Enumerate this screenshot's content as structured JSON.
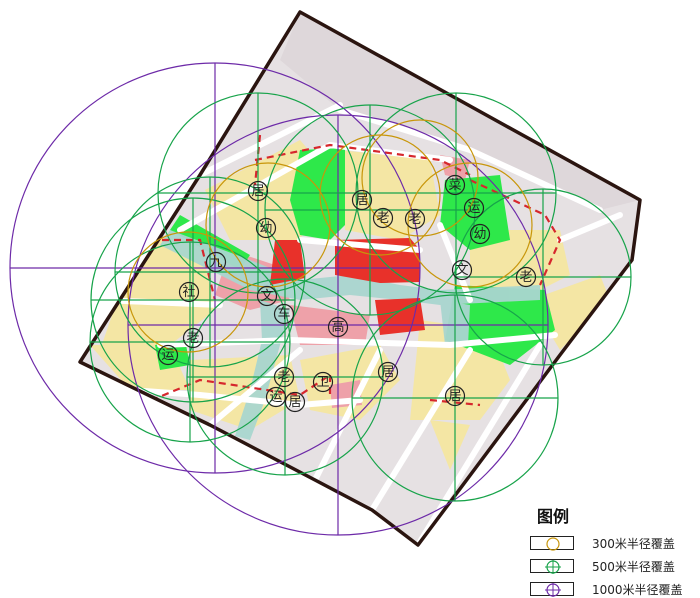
{
  "legend": {
    "title": "图例",
    "items": [
      {
        "label": "300米半径覆盖",
        "color": "#c8960a",
        "kind": "circle"
      },
      {
        "label": "500米半径覆盖",
        "color": "#17a34a",
        "kind": "circle-cross"
      },
      {
        "label": "1000米半径覆盖",
        "color": "#6d2aa8",
        "kind": "circle-cross"
      }
    ]
  },
  "colors": {
    "boundary": "#2b1510",
    "road": "#ffffff",
    "base": "#e6e1e3",
    "residential": "#f4e6a4",
    "green": "#2ee84a",
    "commercial": "#e8312a",
    "pink": "#eea1a9",
    "water": "#a9d6cf",
    "coverage_300": "#c8960a",
    "coverage_500": "#17a34a",
    "coverage_1000": "#6d2aa8"
  },
  "facilities": [
    {
      "id": "f1",
      "label": "居"
    },
    {
      "id": "f2",
      "label": "幼"
    },
    {
      "id": "f3",
      "label": "居"
    },
    {
      "id": "f4",
      "label": "老"
    },
    {
      "id": "f5",
      "label": "老"
    },
    {
      "id": "f6",
      "label": "菜"
    },
    {
      "id": "f7",
      "label": "运"
    },
    {
      "id": "f8",
      "label": "幼"
    },
    {
      "id": "f9",
      "label": "九"
    },
    {
      "id": "f10",
      "label": "社"
    },
    {
      "id": "f11",
      "label": "文"
    },
    {
      "id": "f12",
      "label": "车"
    },
    {
      "id": "f13",
      "label": "高"
    },
    {
      "id": "f14",
      "label": "文"
    },
    {
      "id": "f15",
      "label": "老"
    },
    {
      "id": "f16",
      "label": "老"
    },
    {
      "id": "f17",
      "label": "运"
    },
    {
      "id": "f18",
      "label": "居"
    },
    {
      "id": "f19",
      "label": "老"
    },
    {
      "id": "f20",
      "label": "卫"
    },
    {
      "id": "f21",
      "label": "运"
    },
    {
      "id": "f22",
      "label": "居"
    },
    {
      "id": "f23",
      "label": "居"
    }
  ]
}
